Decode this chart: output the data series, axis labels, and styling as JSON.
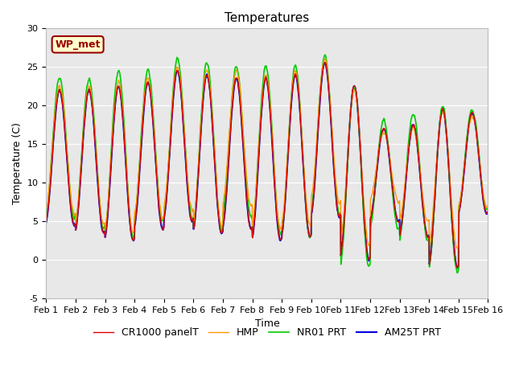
{
  "title": "Temperatures",
  "xlabel": "Time",
  "ylabel": "Temperature (C)",
  "ylim": [
    -5,
    30
  ],
  "xlim": [
    0,
    15
  ],
  "xtick_labels": [
    "Feb 1",
    "Feb 2",
    "Feb 3",
    "Feb 4",
    "Feb 5",
    "Feb 6",
    "Feb 7",
    "Feb 8",
    "Feb 9",
    "Feb 10",
    "Feb 11",
    "Feb 12",
    "Feb 13",
    "Feb 14",
    "Feb 15",
    "Feb 16"
  ],
  "ytick_values": [
    -5,
    0,
    5,
    10,
    15,
    20,
    25,
    30
  ],
  "series_colors": [
    "#dd0000",
    "#ff9900",
    "#00cc00",
    "#0000dd"
  ],
  "series_labels": [
    "CR1000 panelT",
    "HMP",
    "NR01 PRT",
    "AM25T PRT"
  ],
  "series_linewidths": [
    1.0,
    1.0,
    1.2,
    1.5
  ],
  "annotation_text": "WP_met",
  "annotation_bg": "#ffffcc",
  "annotation_border": "#990000",
  "bg_color": "#e8e8e8",
  "fig_bg": "#ffffff",
  "title_fontsize": 11,
  "axis_label_fontsize": 9,
  "tick_fontsize": 8,
  "legend_fontsize": 9,
  "day_peaks": [
    22.0,
    22.0,
    22.5,
    23.0,
    24.5,
    24.0,
    23.5,
    23.5,
    24.0,
    25.5,
    22.5,
    17.0,
    17.5,
    19.5,
    19.0
  ],
  "day_troughs": [
    4.5,
    3.5,
    2.5,
    4.0,
    5.0,
    3.5,
    4.0,
    2.5,
    3.0,
    5.5,
    0.0,
    5.0,
    3.0,
    -1.0,
    6.0
  ],
  "hmp_peak_offsets": [
    0.5,
    0.5,
    0.5,
    0.5,
    0.5,
    0.5,
    1.0,
    0.5,
    0.5,
    0.5,
    -0.5,
    -0.5,
    -0.5,
    -0.5,
    -0.5
  ],
  "hmp_trough_offsets": [
    1.5,
    1.0,
    1.0,
    1.5,
    1.5,
    1.0,
    3.0,
    1.5,
    1.5,
    2.0,
    2.0,
    2.5,
    2.0,
    2.5,
    1.0
  ],
  "nr01_peak_offsets": [
    1.5,
    1.5,
    2.0,
    1.5,
    1.5,
    1.5,
    1.5,
    1.5,
    1.0,
    1.0,
    0.0,
    1.0,
    1.5,
    0.5,
    0.5
  ],
  "nr01_trough_offsets": [
    1.0,
    0.5,
    0.5,
    1.0,
    0.5,
    0.5,
    1.5,
    1.0,
    0.0,
    0.5,
    -1.0,
    -1.0,
    -0.5,
    -0.5,
    0.5
  ]
}
